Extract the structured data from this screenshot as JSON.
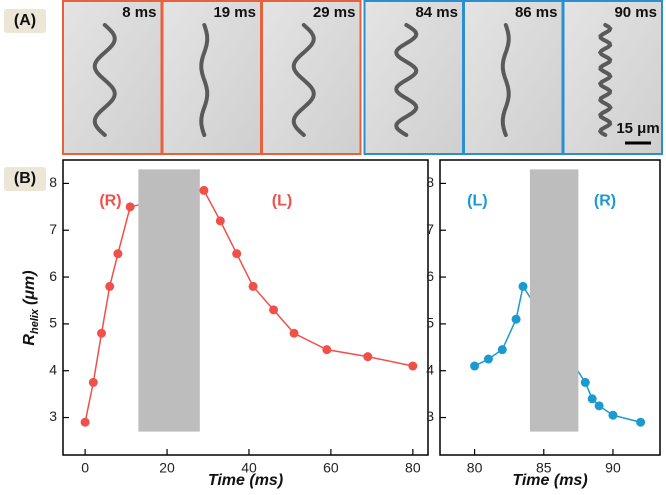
{
  "panel_a": {
    "label": "(A)",
    "frames": [
      {
        "time": "8 ms",
        "color": "#e8603c"
      },
      {
        "time": "19 ms",
        "color": "#e8603c"
      },
      {
        "time": "29 ms",
        "color": "#e8603c"
      },
      {
        "time": "84 ms",
        "color": "#2a8fd0"
      },
      {
        "time": "86 ms",
        "color": "#2a8fd0"
      },
      {
        "time": "90 ms",
        "color": "#2a8fd0"
      }
    ],
    "scale_bar": "15 μm"
  },
  "panel_b_label": "(B)",
  "y_label": {
    "main": "R",
    "sub": "helix",
    "unit": "(μm)"
  },
  "chart_data": [
    {
      "type": "line",
      "x_label": "Time (ms)",
      "x": [
        0,
        2,
        4,
        6,
        8,
        11,
        29,
        33,
        37,
        41,
        46,
        51,
        59,
        69,
        80
      ],
      "values": [
        2.9,
        3.75,
        4.8,
        5.8,
        6.5,
        7.5,
        7.85,
        7.2,
        6.5,
        5.8,
        5.3,
        4.8,
        4.45,
        4.3,
        4.1
      ],
      "color": "#f0504a",
      "shaded_region": {
        "x": [
          13,
          28
        ],
        "y": [
          2.7,
          8.3
        ],
        "color": "#bdbdbd"
      },
      "annotations": [
        "(R)",
        "(L)"
      ],
      "xlim": [
        -5.4,
        83.7
      ],
      "ylim": [
        2.2,
        8.5
      ],
      "xticks": [
        0,
        20,
        40,
        60,
        80
      ],
      "yticks": [
        3,
        4,
        5,
        6,
        7,
        8
      ]
    },
    {
      "type": "line",
      "x_label": "Time (ms)",
      "x": [
        80,
        81,
        82,
        83,
        83.5,
        88,
        88.5,
        89,
        90,
        92
      ],
      "values": [
        4.1,
        4.25,
        4.45,
        5.1,
        5.8,
        3.75,
        3.4,
        3.25,
        3.05,
        2.9
      ],
      "color": "#1a9ad0",
      "shaded_region": {
        "x": [
          84,
          87.5
        ],
        "y": [
          2.7,
          8.3
        ],
        "color": "#bdbdbd"
      },
      "annotations": [
        "(L)",
        "(R)"
      ],
      "xlim": [
        77.5,
        93.4
      ],
      "ylim": [
        2.2,
        8.5
      ],
      "xticks": [
        80,
        85,
        90
      ],
      "yticks": [
        3,
        4,
        5,
        6,
        7,
        8
      ]
    }
  ]
}
